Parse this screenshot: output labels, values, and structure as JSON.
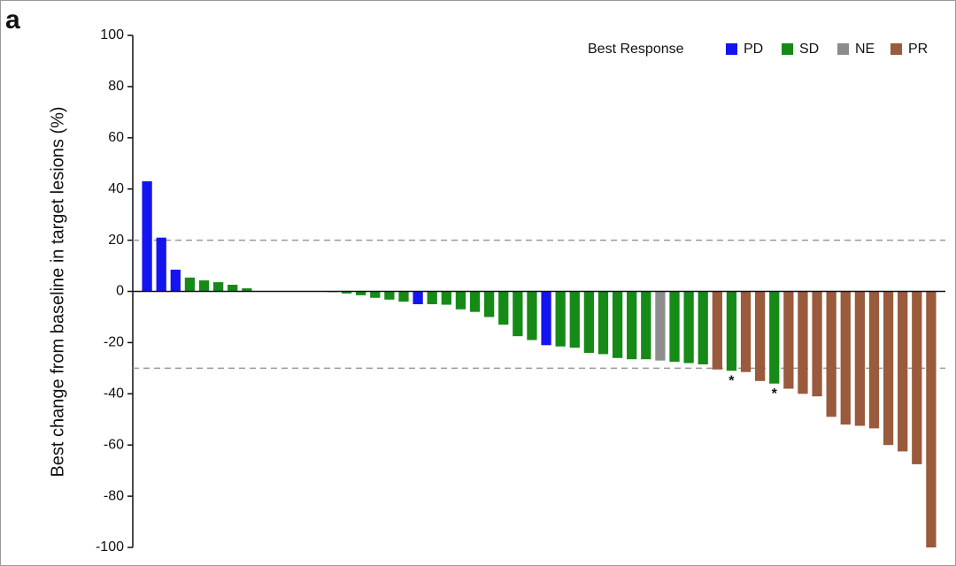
{
  "chart_data": {
    "type": "bar",
    "panel_label": "a",
    "y_label": "Best change from baseline in target lesions (%)",
    "legend_title": "Best Response",
    "legend": "upper right",
    "ylim": [
      -100,
      100
    ],
    "yticks": [
      -100,
      -80,
      -60,
      -40,
      -20,
      0,
      20,
      40,
      60,
      80,
      100
    ],
    "reference_lines": [
      20,
      -30
    ],
    "series": [
      {
        "name": "PD",
        "color": "#1414f0",
        "values": [
          43,
          21,
          8.5,
          null,
          null,
          null,
          null,
          null,
          null,
          null,
          null,
          null,
          null,
          null,
          null,
          null,
          null,
          null,
          null,
          -5,
          null,
          null,
          null,
          null,
          null,
          null,
          null,
          null,
          -21,
          null,
          null,
          null,
          null,
          null,
          null,
          null,
          null,
          null,
          null,
          null,
          null,
          null,
          null,
          null,
          null,
          null,
          null,
          null,
          null,
          null,
          null,
          null,
          null,
          null,
          null,
          null
        ]
      },
      {
        "name": "SD",
        "color": "#168a16",
        "values": [
          null,
          null,
          null,
          5.4,
          4.3,
          3.6,
          2.6,
          1.2,
          0,
          0,
          0,
          0,
          0,
          -0.3,
          -0.8,
          -1.5,
          -2.5,
          -3.2,
          -4,
          null,
          -5,
          -5.2,
          -7,
          -8,
          -10,
          -13,
          -17.5,
          -19,
          null,
          -21.5,
          -22,
          -24,
          -24.5,
          -26,
          -26.5,
          -26.5,
          null,
          -27.5,
          -28,
          -28.5,
          null,
          -31,
          null,
          null,
          -36,
          null,
          null,
          null,
          null,
          null,
          null,
          null,
          null,
          null,
          null,
          null
        ]
      },
      {
        "name": "NE",
        "color": "#8c8c8c",
        "values": [
          null,
          null,
          null,
          null,
          null,
          null,
          null,
          null,
          null,
          null,
          null,
          null,
          null,
          null,
          null,
          null,
          null,
          null,
          null,
          null,
          null,
          null,
          null,
          null,
          null,
          null,
          null,
          null,
          null,
          null,
          null,
          null,
          null,
          null,
          null,
          null,
          -27,
          null,
          null,
          null,
          null,
          null,
          null,
          null,
          null,
          null,
          null,
          null,
          null,
          null,
          null,
          null,
          null,
          null,
          null,
          null
        ]
      },
      {
        "name": "PR",
        "color": "#9a5a3c",
        "values": [
          null,
          null,
          null,
          null,
          null,
          null,
          null,
          null,
          null,
          null,
          null,
          null,
          null,
          null,
          null,
          null,
          null,
          null,
          null,
          null,
          null,
          null,
          null,
          null,
          null,
          null,
          null,
          null,
          null,
          null,
          null,
          null,
          null,
          null,
          null,
          null,
          null,
          null,
          null,
          null,
          -30.5,
          null,
          -31.5,
          -35,
          null,
          -38,
          -40,
          -41,
          -49,
          -52,
          -52.5,
          -53.5,
          -60,
          -62.5,
          -67.5,
          -100
        ]
      }
    ],
    "annotations": [
      {
        "text": "*",
        "x": 41
      },
      {
        "text": "*",
        "x": 44
      }
    ]
  }
}
